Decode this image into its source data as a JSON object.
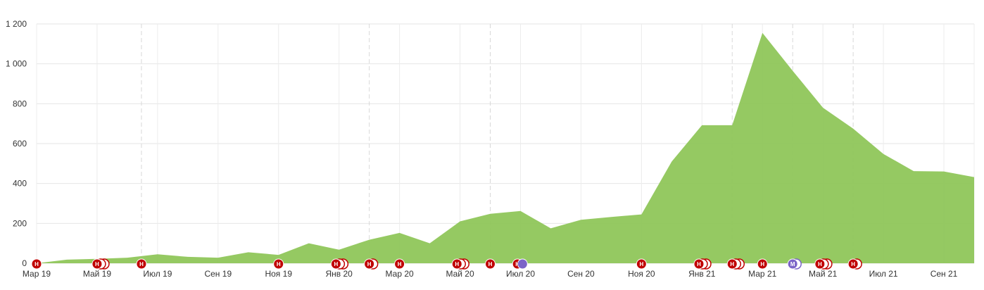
{
  "chart_data": {
    "type": "area",
    "title": "",
    "xlabel": "",
    "ylabel": "",
    "ylim": [
      0,
      1200
    ],
    "yticks": [
      0,
      200,
      400,
      600,
      800,
      1000,
      1200
    ],
    "ytick_labels": [
      "0",
      "200",
      "400",
      "600",
      "800",
      "1 000",
      "1 200"
    ],
    "xlim": [
      "2019-03",
      "2021-10"
    ],
    "xtick_labels": [
      {
        "month": "2019-03",
        "label": "Мар 19"
      },
      {
        "month": "2019-05",
        "label": "Май 19"
      },
      {
        "month": "2019-07",
        "label": "Июл 19"
      },
      {
        "month": "2019-09",
        "label": "Сен 19"
      },
      {
        "month": "2019-11",
        "label": "Ноя 19"
      },
      {
        "month": "2020-01",
        "label": "Янв 20"
      },
      {
        "month": "2020-03",
        "label": "Мар 20"
      },
      {
        "month": "2020-05",
        "label": "Май 20"
      },
      {
        "month": "2020-07",
        "label": "Июл 20"
      },
      {
        "month": "2020-09",
        "label": "Сен 20"
      },
      {
        "month": "2020-11",
        "label": "Ноя 20"
      },
      {
        "month": "2021-01",
        "label": "Янв 21"
      },
      {
        "month": "2021-03",
        "label": "Мар 21"
      },
      {
        "month": "2021-05",
        "label": "Май 21"
      },
      {
        "month": "2021-07",
        "label": "Июл 21"
      },
      {
        "month": "2021-09",
        "label": "Сен 21"
      }
    ],
    "grid": true,
    "fill_color": "#8fc65a",
    "series": [
      {
        "points": [
          {
            "x": "2019-03-01",
            "y": 0
          },
          {
            "x": "2019-04-01",
            "y": 18
          },
          {
            "x": "2019-05-01",
            "y": 22
          },
          {
            "x": "2019-06-01",
            "y": 28
          },
          {
            "x": "2019-07-01",
            "y": 45
          },
          {
            "x": "2019-08-01",
            "y": 32
          },
          {
            "x": "2019-09-01",
            "y": 28
          },
          {
            "x": "2019-10-01",
            "y": 55
          },
          {
            "x": "2019-11-01",
            "y": 42
          },
          {
            "x": "2019-12-01",
            "y": 100
          },
          {
            "x": "2020-01-01",
            "y": 68
          },
          {
            "x": "2020-02-01",
            "y": 118
          },
          {
            "x": "2020-03-01",
            "y": 152
          },
          {
            "x": "2020-04-01",
            "y": 100
          },
          {
            "x": "2020-05-01",
            "y": 210
          },
          {
            "x": "2020-06-01",
            "y": 248
          },
          {
            "x": "2020-07-01",
            "y": 262
          },
          {
            "x": "2020-08-01",
            "y": 175
          },
          {
            "x": "2020-09-01",
            "y": 218
          },
          {
            "x": "2020-10-01",
            "y": 232
          },
          {
            "x": "2020-11-01",
            "y": 245
          },
          {
            "x": "2020-12-01",
            "y": 510
          },
          {
            "x": "2021-01-01",
            "y": 692
          },
          {
            "x": "2021-02-01",
            "y": 692
          },
          {
            "x": "2021-03-01",
            "y": 1155
          },
          {
            "x": "2021-04-01",
            "y": 965
          },
          {
            "x": "2021-05-01",
            "y": 780
          },
          {
            "x": "2021-06-01",
            "y": 675
          },
          {
            "x": "2021-07-01",
            "y": 548
          },
          {
            "x": "2021-08-01",
            "y": 462
          },
          {
            "x": "2021-09-01",
            "y": 460
          },
          {
            "x": "2021-10-01",
            "y": 432
          }
        ]
      }
    ],
    "event_markers": [
      {
        "date": "2019-03-01",
        "label": "Н",
        "count": 1,
        "color": "#c00000"
      },
      {
        "date": "2019-05-01",
        "label": "Н",
        "count": 3,
        "color": "#c00000"
      },
      {
        "date": "2019-06-15",
        "label": "Н",
        "count": 1,
        "color": "#c00000"
      },
      {
        "date": "2019-11-01",
        "label": "Н",
        "count": 1,
        "color": "#c00000"
      },
      {
        "date": "2019-12-28",
        "label": "Н",
        "count": 3,
        "color": "#c00000"
      },
      {
        "date": "2020-02-01",
        "label": "Н",
        "count": 2,
        "color": "#c00000"
      },
      {
        "date": "2020-03-01",
        "label": "Н",
        "count": 1,
        "color": "#c00000"
      },
      {
        "date": "2020-04-28",
        "label": "Н",
        "count": 3,
        "color": "#c00000"
      },
      {
        "date": "2020-06-01",
        "label": "Н",
        "count": 1,
        "color": "#c00000"
      },
      {
        "date": "2020-06-28",
        "label": "Н",
        "count": 1,
        "color": "#c00000"
      },
      {
        "date": "2020-07-03",
        "label": "",
        "count": 1,
        "color": "#7b64c8"
      },
      {
        "date": "2020-11-01",
        "label": "Н",
        "count": 1,
        "color": "#c00000"
      },
      {
        "date": "2020-12-28",
        "label": "Н",
        "count": 3,
        "color": "#c00000"
      },
      {
        "date": "2021-02-01",
        "label": "Н",
        "count": 3,
        "color": "#c00000"
      },
      {
        "date": "2021-03-01",
        "label": "Н",
        "count": 1,
        "color": "#c00000"
      },
      {
        "date": "2021-04-01",
        "label": "М",
        "count": 2,
        "color": "#7b64c8"
      },
      {
        "date": "2021-04-28",
        "label": "Н",
        "count": 3,
        "color": "#c00000"
      },
      {
        "date": "2021-06-01",
        "label": "Н",
        "count": 2,
        "color": "#c00000"
      }
    ],
    "dashed_dates": [
      "2019-06-15",
      "2020-02-01",
      "2020-06-01",
      "2021-02-01",
      "2021-04-01",
      "2021-06-01"
    ]
  }
}
